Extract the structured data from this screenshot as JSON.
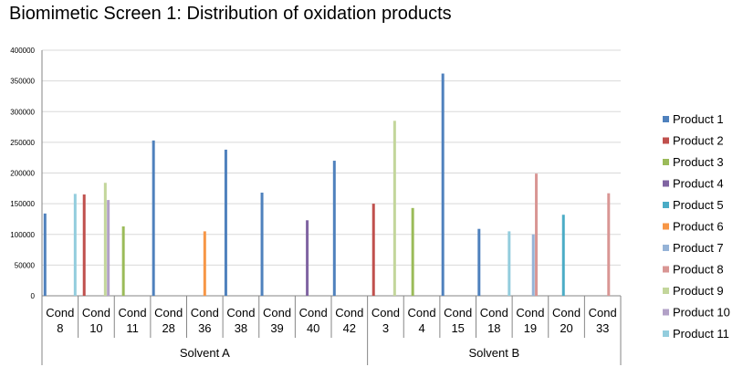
{
  "chart_data": {
    "type": "bar",
    "title": "Biomimetic Screen 1: Distribution of oxidation products",
    "xlabel": "",
    "ylabel": "",
    "ylim": [
      0,
      400000
    ],
    "yticks": [
      "0",
      "50000",
      "100000",
      "150000",
      "200000",
      "250000",
      "300000",
      "350000",
      "400000"
    ],
    "grid": true,
    "legend_position": "right",
    "categories": [
      [
        "Cond",
        "8"
      ],
      [
        "Cond",
        "10"
      ],
      [
        "Cond",
        "11"
      ],
      [
        "Cond",
        "28"
      ],
      [
        "Cond",
        "36"
      ],
      [
        "Cond",
        "38"
      ],
      [
        "Cond",
        "39"
      ],
      [
        "Cond",
        "40"
      ],
      [
        "Cond",
        "42"
      ],
      [
        "Cond",
        "3"
      ],
      [
        "Cond",
        "4"
      ],
      [
        "Cond",
        "15"
      ],
      [
        "Cond",
        "18"
      ],
      [
        "Cond",
        "19"
      ],
      [
        "Cond",
        "20"
      ],
      [
        "Cond",
        "33"
      ]
    ],
    "groups": [
      {
        "label": "Solvent A",
        "count": 9
      },
      {
        "label": "Solvent B",
        "count": 7
      }
    ],
    "series": [
      {
        "name": "Product 1",
        "color": "#4F81BD",
        "values": [
          134000,
          0,
          0,
          253000,
          0,
          238000,
          168000,
          0,
          220000,
          0,
          0,
          362000,
          109000,
          0,
          0,
          0
        ]
      },
      {
        "name": "Product 2",
        "color": "#C0504D",
        "values": [
          0,
          165000,
          0,
          0,
          0,
          0,
          0,
          0,
          0,
          150000,
          0,
          0,
          0,
          0,
          0,
          0
        ]
      },
      {
        "name": "Product 3",
        "color": "#9BBB59",
        "values": [
          0,
          0,
          113000,
          0,
          0,
          0,
          0,
          0,
          0,
          0,
          143000,
          0,
          0,
          0,
          0,
          0
        ]
      },
      {
        "name": "Product 4",
        "color": "#8064A2",
        "values": [
          0,
          0,
          0,
          0,
          0,
          0,
          0,
          123000,
          0,
          0,
          0,
          0,
          0,
          0,
          0,
          0
        ]
      },
      {
        "name": "Product 5",
        "color": "#4BACC6",
        "values": [
          0,
          0,
          0,
          0,
          0,
          0,
          0,
          0,
          0,
          0,
          0,
          0,
          0,
          0,
          132000,
          0
        ]
      },
      {
        "name": "Product 6",
        "color": "#F79646",
        "values": [
          0,
          0,
          0,
          0,
          105000,
          0,
          0,
          0,
          0,
          0,
          0,
          0,
          0,
          0,
          0,
          0
        ]
      },
      {
        "name": "Product 7",
        "color": "#95B3D7",
        "values": [
          0,
          0,
          0,
          0,
          0,
          0,
          0,
          0,
          0,
          0,
          0,
          0,
          0,
          100000,
          0,
          0
        ]
      },
      {
        "name": "Product 8",
        "color": "#D99694",
        "values": [
          0,
          0,
          0,
          0,
          0,
          0,
          0,
          0,
          0,
          0,
          0,
          0,
          0,
          199000,
          0,
          167000
        ]
      },
      {
        "name": "Product 9",
        "color": "#C3D69B",
        "values": [
          0,
          184000,
          0,
          0,
          0,
          0,
          0,
          0,
          0,
          285000,
          0,
          0,
          0,
          0,
          0,
          0
        ]
      },
      {
        "name": "Product 10",
        "color": "#B2A1C7",
        "values": [
          0,
          156000,
          0,
          0,
          0,
          0,
          0,
          0,
          0,
          0,
          0,
          0,
          0,
          0,
          0,
          0
        ]
      },
      {
        "name": "Product 11",
        "color": "#93CDDD",
        "values": [
          166000,
          0,
          0,
          0,
          0,
          0,
          0,
          0,
          0,
          0,
          0,
          0,
          105000,
          0,
          0,
          0
        ]
      }
    ]
  }
}
